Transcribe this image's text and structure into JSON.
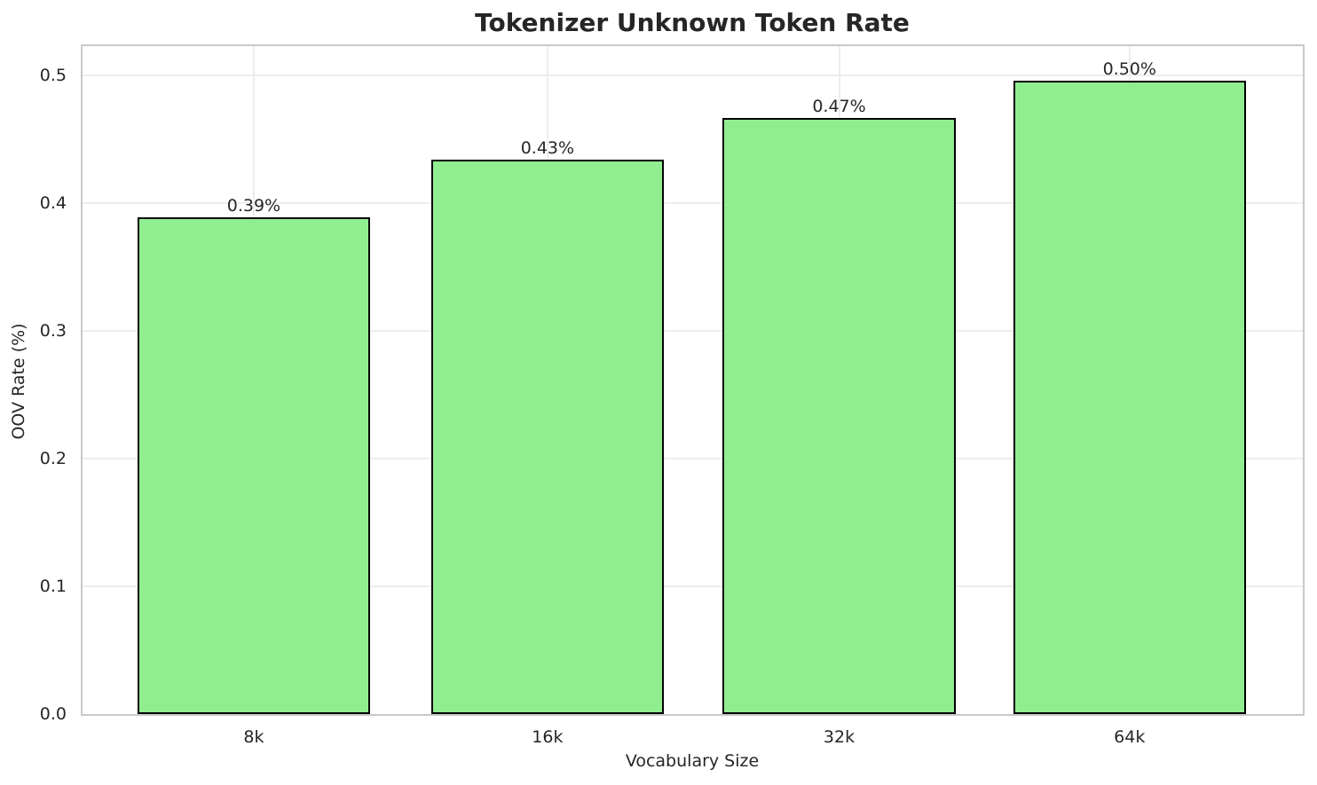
{
  "chart_data": {
    "type": "bar",
    "title": "Tokenizer Unknown Token Rate",
    "xlabel": "Vocabulary Size",
    "ylabel": "OOV Rate (%)",
    "categories": [
      "8k",
      "16k",
      "32k",
      "64k"
    ],
    "values": [
      0.389,
      0.434,
      0.467,
      0.496
    ],
    "bar_labels": [
      "0.39%",
      "0.43%",
      "0.47%",
      "0.50%"
    ],
    "y_ticks": {
      "values": [
        0.0,
        0.1,
        0.2,
        0.3,
        0.4,
        0.5
      ],
      "labels": [
        "0.0",
        "0.1",
        "0.2",
        "0.3",
        "0.4",
        "0.5"
      ]
    },
    "ylim": [
      0,
      0.523
    ],
    "grid": true,
    "legend": "none",
    "colors": {
      "bar_fill": "#90EE90",
      "bar_edge": "#000000",
      "grid_line": "#ededed",
      "spine": "#c9c9c9",
      "text": "#262626"
    },
    "bar_centers_frac": [
      0.1403,
      0.381,
      0.62,
      0.858
    ],
    "bar_width_frac": 0.1907
  }
}
